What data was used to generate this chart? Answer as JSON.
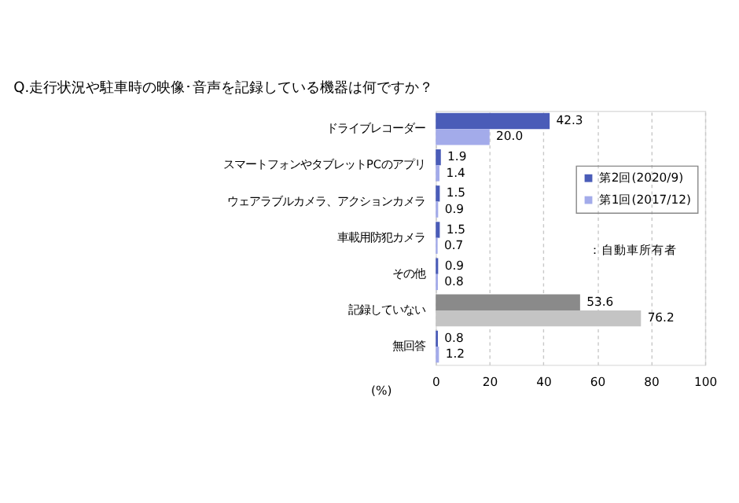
{
  "chart_data": {
    "type": "bar",
    "orientation": "horizontal",
    "title": "Q.走行状況や駐車時の映像･音声を記録している機器は何ですか？",
    "categories": [
      "ドライブレコーダー",
      "スマートフォンやタブレットPCのアプリ",
      "ウェアラブルカメラ、アクションカメラ",
      "車載用防犯カメラ",
      "その他",
      "記録していない",
      "無回答"
    ],
    "series": [
      {
        "name": "第2回(2020/9)",
        "color": "#4a5cb8",
        "colors": [
          "#4a5cb8",
          "#4a5cb8",
          "#4a5cb8",
          "#4a5cb8",
          "#4a5cb8",
          "#8a8a8a",
          "#4a5cb8"
        ],
        "values": [
          42.3,
          1.9,
          1.5,
          1.5,
          0.9,
          53.6,
          0.8
        ],
        "value_labels": [
          "42.3",
          "1.9",
          "1.5",
          "1.5",
          "0.9",
          "53.6",
          "0.8"
        ]
      },
      {
        "name": "第1回(2017/12)",
        "color": "#a3abea",
        "colors": [
          "#a3abea",
          "#a3abea",
          "#a3abea",
          "#a3abea",
          "#a3abea",
          "#c4c4c4",
          "#a3abea"
        ],
        "values": [
          20.0,
          1.4,
          0.9,
          0.7,
          0.8,
          76.2,
          1.2
        ],
        "value_labels": [
          "20.0",
          "1.4",
          "0.9",
          "0.7",
          "0.8",
          "76.2",
          "1.2"
        ]
      }
    ],
    "xlabel": "(%)",
    "xlim": [
      0,
      100
    ],
    "xticks": [
      0,
      20,
      40,
      60,
      80,
      100
    ],
    "grid": "x",
    "legend": "right",
    "annotations": [
      "：自動車所有者"
    ]
  }
}
